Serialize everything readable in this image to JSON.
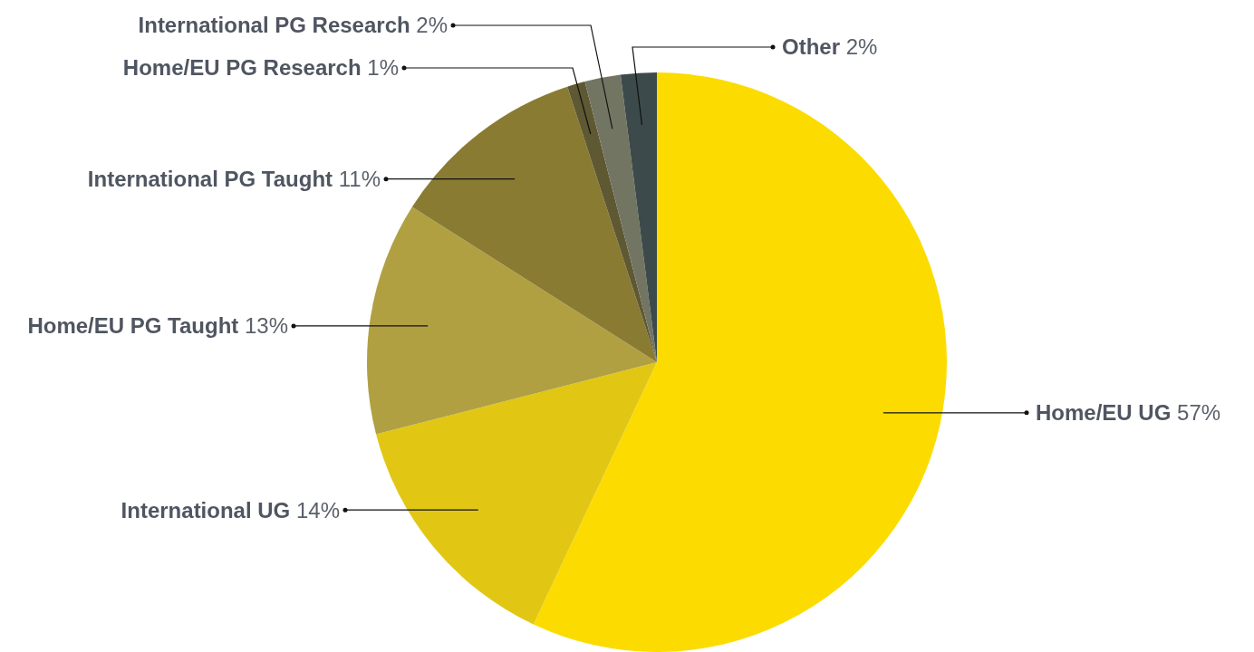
{
  "chart_data": {
    "type": "pie",
    "categories": [
      "Home/EU UG",
      "International UG",
      "Home/EU PG Taught",
      "International PG Taught",
      "Home/EU PG Research",
      "International PG Research",
      "Other"
    ],
    "values": [
      57,
      14,
      13,
      11,
      1,
      2,
      2
    ],
    "value_labels": [
      "57%",
      "14%",
      "13%",
      "11%",
      "1%",
      "2%",
      "2%"
    ],
    "colors": [
      "#fcdc00",
      "#e1c714",
      "#b0a042",
      "#897b32",
      "#5e5833",
      "#737563",
      "#3d4a4b"
    ]
  }
}
